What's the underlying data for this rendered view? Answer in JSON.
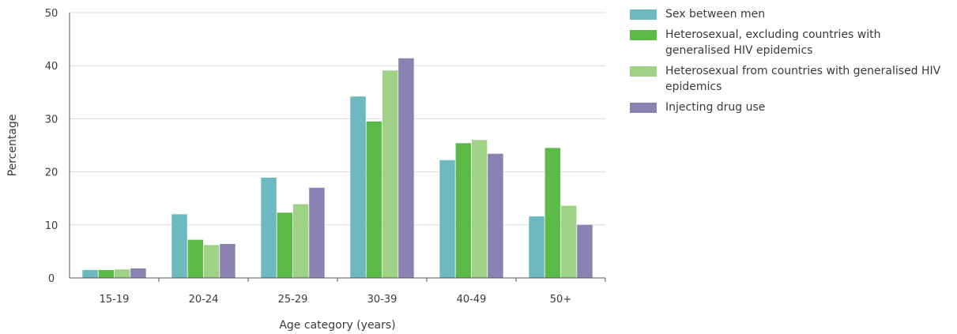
{
  "chart_data": {
    "type": "bar",
    "xlabel": "Age category (years)",
    "ylabel": "Percentage",
    "ylim": [
      0,
      50
    ],
    "yticks": [
      "0",
      "10",
      "20",
      "30",
      "40",
      "50"
    ],
    "grid": "horizontal",
    "legend_position": "right",
    "categories": [
      "15-19",
      "20-24",
      "25-29",
      "30-39",
      "40-49",
      "50+"
    ],
    "series": [
      {
        "name": "Sex between men",
        "color": "#6cbac0",
        "values": [
          1.5,
          12.0,
          18.9,
          34.2,
          22.2,
          11.6
        ]
      },
      {
        "name": "Heterosexual, excluding countries with generalised HIV epidemics",
        "color": "#5bbb46",
        "values": [
          1.5,
          7.2,
          12.3,
          29.5,
          25.4,
          24.5
        ]
      },
      {
        "name": "Heterosexual from countries with generalised HIV epidemics",
        "color": "#9fd286",
        "values": [
          1.6,
          6.2,
          13.9,
          39.1,
          26.0,
          13.6
        ]
      },
      {
        "name": "Injecting drug use",
        "color": "#8b82b4",
        "values": [
          1.8,
          6.4,
          17.0,
          41.4,
          23.4,
          10.0
        ]
      }
    ]
  }
}
